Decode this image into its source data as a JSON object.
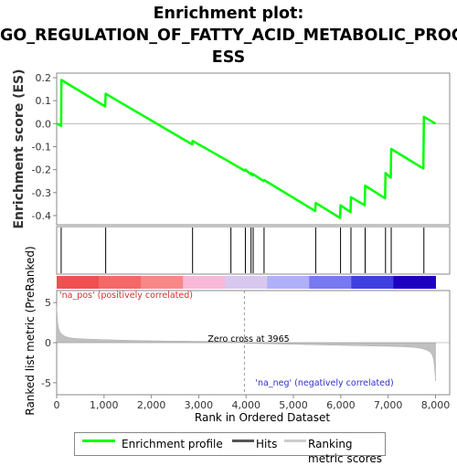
{
  "title_lines": [
    "Enrichment plot:",
    "GO_REGULATION_OF_FATTY_ACID_METABOLIC_PROC",
    "ESS"
  ],
  "chart_data": {
    "type": "line",
    "top_panel": {
      "ylabel": "Enrichment score (ES)",
      "ylim": [
        -0.44,
        0.22
      ],
      "yticks": [
        0.2,
        0.1,
        0.0,
        -0.1,
        -0.2,
        -0.3,
        -0.4
      ],
      "ytick_labels": [
        "0.2",
        "0.1",
        "0.0",
        "-0.1",
        "-0.2",
        "-0.3",
        "-0.4"
      ],
      "series": [
        {
          "name": "Enrichment profile",
          "color": "#00ff00",
          "x": [
            0,
            95,
            100,
            1025,
            1035,
            2860,
            2870,
            3680,
            3975,
            3985,
            4095,
            4105,
            4140,
            4150,
            4370,
            4380,
            5460,
            5470,
            5985,
            5995,
            6205,
            6215,
            6505,
            6515,
            6935,
            6945,
            7055,
            7065,
            7745,
            7755,
            8000
          ],
          "y": [
            0.0,
            -0.01,
            0.19,
            0.075,
            0.13,
            -0.09,
            -0.075,
            -0.17,
            -0.205,
            -0.2,
            -0.22,
            -0.215,
            -0.225,
            -0.22,
            -0.25,
            -0.245,
            -0.38,
            -0.345,
            -0.41,
            -0.355,
            -0.385,
            -0.32,
            -0.355,
            -0.27,
            -0.325,
            -0.215,
            -0.235,
            -0.11,
            -0.195,
            0.03,
            0.0
          ]
        }
      ]
    },
    "hits": [
      95,
      1035,
      2870,
      3680,
      3985,
      4105,
      4150,
      4380,
      5470,
      5995,
      6215,
      6515,
      6945,
      7065,
      7755
    ],
    "color_bar_colors": [
      "#f05050",
      "#f46868",
      "#f88888",
      "#fab8d8",
      "#d8c8f0",
      "#b0b0f8",
      "#7878f0",
      "#4040e0",
      "#2000c0"
    ],
    "annotations": {
      "positive": "'na_pos' (positively correlated)",
      "negative": "'na_neg' (negatively correlated)",
      "zero_cross": "Zero cross at 3965"
    },
    "zero_cross": 3965,
    "bottom_panel": {
      "ylabel": "Ranked list metric (PreRanked)",
      "ylim": [
        -6.5,
        6.5
      ],
      "yticks": [
        5,
        0,
        -5
      ],
      "ytick_labels": [
        "5",
        "0",
        "-5"
      ]
    },
    "xlabel": "Rank in Ordered Dataset",
    "xlim": [
      0,
      8300
    ],
    "xticks": [
      0,
      1000,
      2000,
      3000,
      4000,
      5000,
      6000,
      7000,
      8000
    ],
    "xtick_labels": [
      "0",
      "1,000",
      "2,000",
      "3,000",
      "4,000",
      "5,000",
      "6,000",
      "7,000",
      "8,000"
    ],
    "n_genes": 8000,
    "legend": [
      {
        "label": "Enrichment profile",
        "color": "#00ff00"
      },
      {
        "label": "Hits",
        "color": "#555555"
      },
      {
        "label": "Ranking metric scores",
        "color": "#cccccc"
      }
    ]
  }
}
